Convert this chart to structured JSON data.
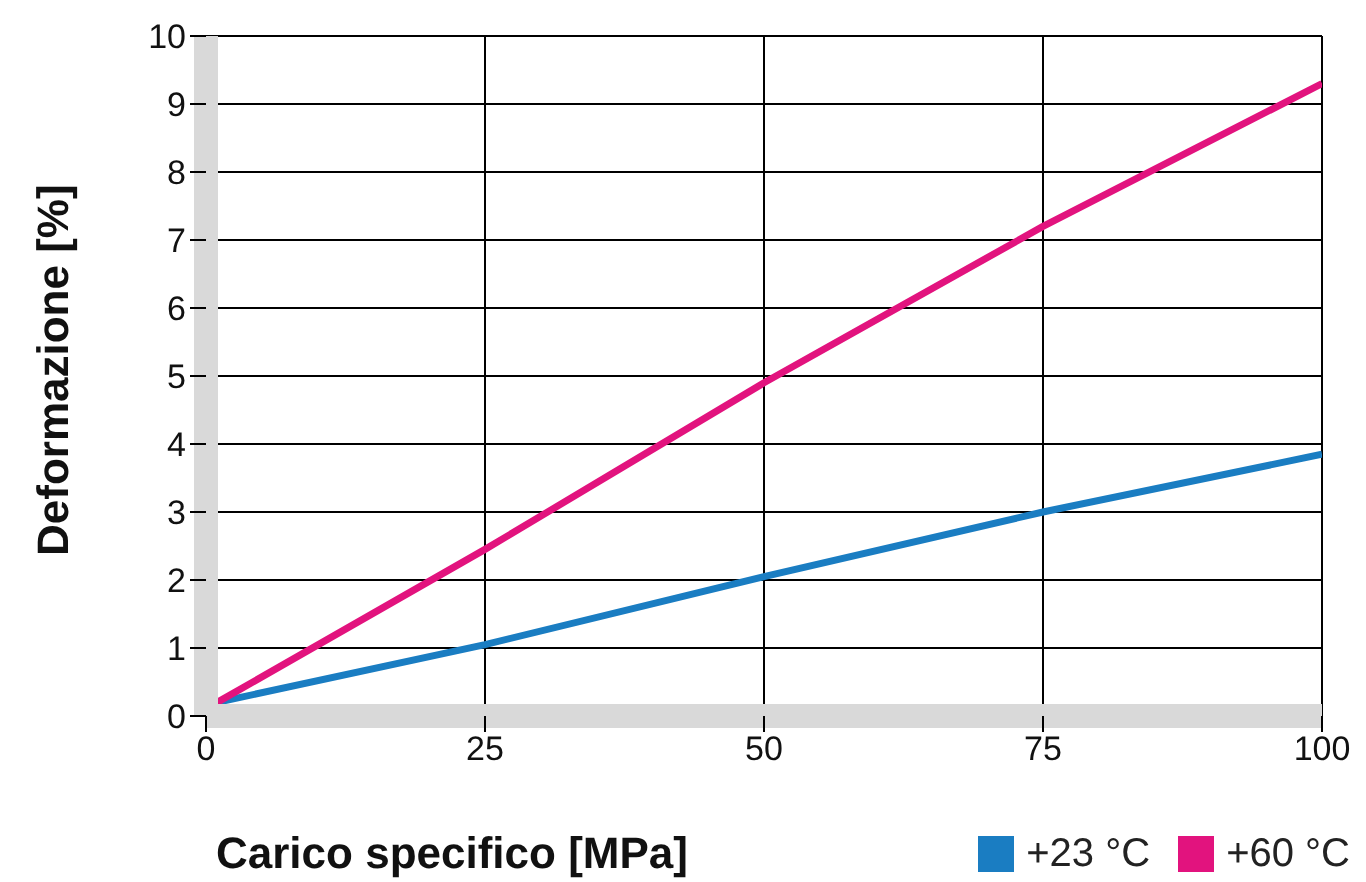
{
  "chart_data": {
    "type": "line",
    "xlabel": "Carico specifico [MPa]",
    "ylabel": "Deformazione [%]",
    "x": [
      1,
      25,
      50,
      75,
      100
    ],
    "series": [
      {
        "name": "+23 °C",
        "color": "#1a7dc2",
        "values": [
          0.2,
          1.05,
          2.05,
          3.0,
          3.85
        ]
      },
      {
        "name": "+60 °C",
        "color": "#e2137e",
        "values": [
          0.2,
          2.45,
          4.9,
          7.2,
          9.3
        ]
      }
    ],
    "xlim": [
      0,
      100
    ],
    "xticks": [
      0,
      25,
      50,
      75,
      100
    ],
    "ylim": [
      0,
      10
    ],
    "yticks": [
      0,
      1,
      2,
      3,
      4,
      5,
      6,
      7,
      8,
      9,
      10
    ],
    "grid": true,
    "legend": "bottom right",
    "marker": "none",
    "line_style": "solid"
  }
}
